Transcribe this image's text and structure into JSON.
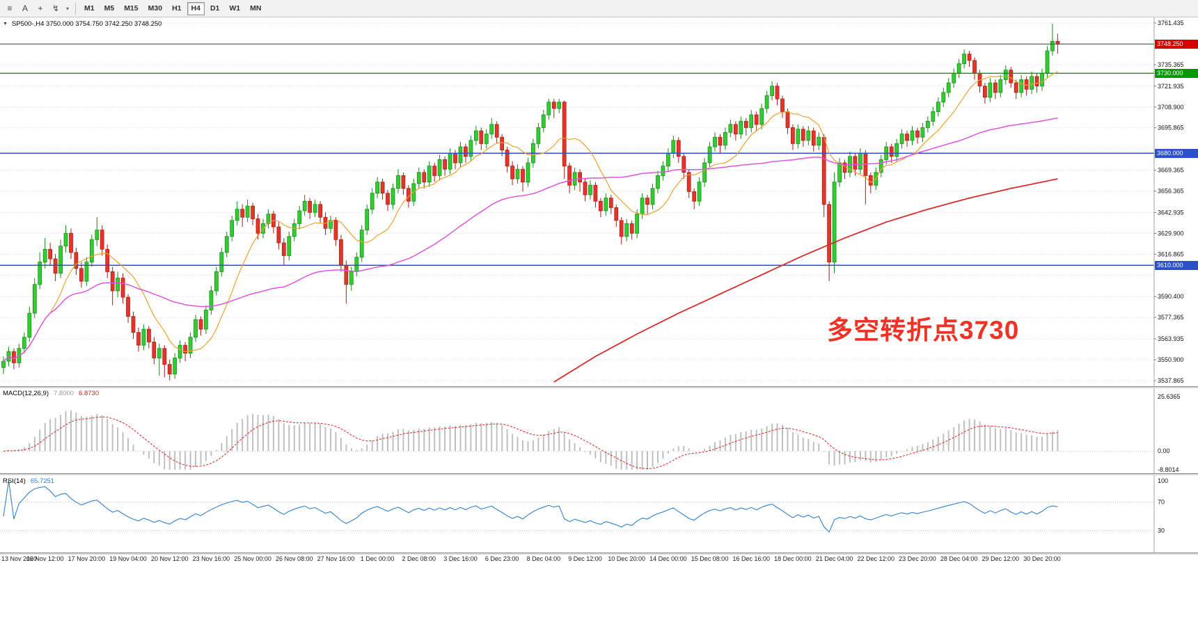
{
  "toolbar": {
    "left_icons": [
      {
        "name": "charts-grid-icon",
        "glyph": "≡"
      },
      {
        "name": "text-annotation-icon",
        "glyph": "A"
      },
      {
        "name": "crosshair-icon",
        "glyph": "+"
      },
      {
        "name": "line-studies-icon",
        "glyph": "↯"
      },
      {
        "name": "dropdown-caret-icon",
        "glyph": "▾"
      }
    ],
    "timeframes": [
      "M1",
      "M5",
      "M15",
      "M30",
      "H1",
      "H4",
      "D1",
      "W1",
      "MN"
    ],
    "active_timeframe": "H4"
  },
  "main_chart": {
    "collapse_glyph": "▼",
    "title": "SP500-,H4 3750.000 3754.750 3742.250 3748.250",
    "annotation": {
      "text": "多空转折点3730",
      "color": "#ee3224"
    }
  },
  "macd_panel": {
    "label": "MACD(12,26,9)",
    "value_main": "7.8000",
    "value_signal": "6.8730",
    "axis_levels": [
      {
        "v": 25.6365,
        "t": "25.6365"
      },
      {
        "v": 0,
        "t": "0.00"
      },
      {
        "v": -8.8014,
        "t": "-8.8014"
      }
    ]
  },
  "rsi_panel": {
    "label": "RSI(14)",
    "value": "65.7251",
    "axis_levels": [
      {
        "v": 100,
        "t": "100"
      },
      {
        "v": 70,
        "t": "70"
      },
      {
        "v": 30,
        "t": "30"
      }
    ],
    "levels": [
      70,
      30
    ]
  },
  "price_axis": {
    "ticks": [
      "3761.435",
      "3735.365",
      "3721.935",
      "3708.900",
      "3695.865",
      "3669.365",
      "3656.365",
      "3642.935",
      "3629.900",
      "3616.865",
      "3590.400",
      "3577.365",
      "3563.935",
      "3550.900",
      "3537.865"
    ],
    "grid_extra": [
      3748.4,
      3682.83,
      3603.865
    ],
    "badges": [
      {
        "price": 3748.25,
        "label": "3748.250",
        "color": "#d40000"
      },
      {
        "price": 3730.0,
        "label": "3730.000",
        "color": "#009a00"
      },
      {
        "price": 3680.0,
        "label": "3680.000",
        "color": "#2b50c8"
      },
      {
        "price": 3610.0,
        "label": "3610.000",
        "color": "#2b50c8"
      }
    ]
  },
  "time_axis": {
    "labels": [
      "13 Nov 2020",
      "16 Nov 12:00",
      "17 Nov 20:00",
      "19 Nov 04:00",
      "20 Nov 12:00",
      "23 Nov 16:00",
      "25 Nov 00:00",
      "26 Nov 08:00",
      "27 Nov 16:00",
      "1 Dec 00:00",
      "2 Dec 08:00",
      "3 Dec 16:00",
      "6 Dec 23:00",
      "8 Dec 04:00",
      "9 Dec 12:00",
      "10 Dec 20:00",
      "14 Dec 00:00",
      "15 Dec 08:00",
      "16 Dec 16:00",
      "18 Dec 00:00",
      "21 Dec 04:00",
      "22 Dec 12:00",
      "23 Dec 20:00",
      "28 Dec 04:00",
      "29 Dec 12:00",
      "30 Dec 20:00"
    ]
  },
  "chart_data": {
    "type": "candlestick",
    "symbol": "SP500-",
    "timeframe": "H4",
    "current_bar": {
      "open": 3750.0,
      "high": 3754.75,
      "low": 3742.25,
      "close": 3748.25
    },
    "y_range": [
      3537.865,
      3761.435
    ],
    "colors": {
      "up": "#33cc33",
      "up_stroke": "#128a12",
      "down": "#e5352b",
      "down_stroke": "#a81a10"
    },
    "candles": [
      [
        3546,
        3553,
        3542,
        3550
      ],
      [
        3550,
        3559,
        3547,
        3556
      ],
      [
        3556,
        3558,
        3545,
        3549
      ],
      [
        3549,
        3561,
        3546,
        3558
      ],
      [
        3558,
        3568,
        3555,
        3565
      ],
      [
        3565,
        3584,
        3562,
        3580
      ],
      [
        3580,
        3602,
        3577,
        3598
      ],
      [
        3598,
        3618,
        3595,
        3612
      ],
      [
        3612,
        3627,
        3608,
        3620
      ],
      [
        3620,
        3624,
        3610,
        3614
      ],
      [
        3614,
        3617,
        3600,
        3605
      ],
      [
        3605,
        3626,
        3602,
        3622
      ],
      [
        3622,
        3635,
        3618,
        3630
      ],
      [
        3630,
        3633,
        3614,
        3618
      ],
      [
        3618,
        3621,
        3604,
        3608
      ],
      [
        3608,
        3612,
        3596,
        3600
      ],
      [
        3600,
        3615,
        3597,
        3612
      ],
      [
        3612,
        3629,
        3609,
        3626
      ],
      [
        3626,
        3640,
        3622,
        3632
      ],
      [
        3632,
        3635,
        3616,
        3620
      ],
      [
        3620,
        3623,
        3602,
        3606
      ],
      [
        3606,
        3609,
        3585,
        3594
      ],
      [
        3594,
        3606,
        3590,
        3602
      ],
      [
        3602,
        3605,
        3586,
        3590
      ],
      [
        3590,
        3592,
        3574,
        3578
      ],
      [
        3578,
        3581,
        3564,
        3568
      ],
      [
        3568,
        3571,
        3556,
        3560
      ],
      [
        3560,
        3573,
        3557,
        3570
      ],
      [
        3570,
        3572,
        3558,
        3562
      ],
      [
        3562,
        3565,
        3548,
        3552
      ],
      [
        3552,
        3561,
        3541,
        3558
      ],
      [
        3558,
        3560,
        3540,
        3548
      ],
      [
        3548,
        3551,
        3538,
        3542
      ],
      [
        3542,
        3555,
        3539,
        3552
      ],
      [
        3552,
        3563,
        3549,
        3560
      ],
      [
        3560,
        3562,
        3550,
        3555
      ],
      [
        3555,
        3568,
        3552,
        3565
      ],
      [
        3565,
        3579,
        3562,
        3576
      ],
      [
        3576,
        3578,
        3566,
        3570
      ],
      [
        3570,
        3585,
        3567,
        3582
      ],
      [
        3582,
        3597,
        3579,
        3594
      ],
      [
        3594,
        3609,
        3591,
        3606
      ],
      [
        3606,
        3621,
        3603,
        3618
      ],
      [
        3618,
        3631,
        3615,
        3628
      ],
      [
        3628,
        3641,
        3625,
        3638
      ],
      [
        3638,
        3650,
        3635,
        3645
      ],
      [
        3645,
        3648,
        3634,
        3640
      ],
      [
        3640,
        3651,
        3637,
        3647
      ],
      [
        3647,
        3649,
        3635,
        3639
      ],
      [
        3639,
        3642,
        3626,
        3630
      ],
      [
        3630,
        3639,
        3627,
        3636
      ],
      [
        3636,
        3645,
        3633,
        3642
      ],
      [
        3642,
        3644,
        3630,
        3634
      ],
      [
        3634,
        3637,
        3620,
        3624
      ],
      [
        3624,
        3627,
        3610,
        3616
      ],
      [
        3616,
        3631,
        3613,
        3628
      ],
      [
        3628,
        3639,
        3625,
        3636
      ],
      [
        3636,
        3647,
        3633,
        3644
      ],
      [
        3644,
        3654,
        3641,
        3650
      ],
      [
        3650,
        3652,
        3639,
        3643
      ],
      [
        3643,
        3651,
        3640,
        3648
      ],
      [
        3648,
        3650,
        3636,
        3640
      ],
      [
        3640,
        3643,
        3629,
        3633
      ],
      [
        3633,
        3641,
        3630,
        3638
      ],
      [
        3638,
        3640,
        3622,
        3626
      ],
      [
        3626,
        3629,
        3606,
        3610
      ],
      [
        3610,
        3613,
        3586,
        3598
      ],
      [
        3598,
        3609,
        3594,
        3606
      ],
      [
        3606,
        3618,
        3603,
        3615
      ],
      [
        3615,
        3635,
        3612,
        3632
      ],
      [
        3632,
        3648,
        3629,
        3645
      ],
      [
        3645,
        3658,
        3642,
        3655
      ],
      [
        3655,
        3665,
        3652,
        3662
      ],
      [
        3662,
        3664,
        3651,
        3655
      ],
      [
        3655,
        3657,
        3644,
        3648
      ],
      [
        3648,
        3661,
        3645,
        3658
      ],
      [
        3658,
        3670,
        3655,
        3666
      ],
      [
        3666,
        3668,
        3654,
        3658
      ],
      [
        3658,
        3660,
        3646,
        3650
      ],
      [
        3650,
        3664,
        3647,
        3661
      ],
      [
        3661,
        3671,
        3658,
        3668
      ],
      [
        3668,
        3670,
        3658,
        3662
      ],
      [
        3662,
        3675,
        3659,
        3672
      ],
      [
        3672,
        3674,
        3662,
        3666
      ],
      [
        3666,
        3679,
        3663,
        3676
      ],
      [
        3676,
        3678,
        3666,
        3670
      ],
      [
        3670,
        3683,
        3667,
        3680
      ],
      [
        3680,
        3682,
        3670,
        3674
      ],
      [
        3674,
        3687,
        3671,
        3684
      ],
      [
        3684,
        3686,
        3674,
        3678
      ],
      [
        3678,
        3691,
        3675,
        3688
      ],
      [
        3688,
        3697,
        3685,
        3694
      ],
      [
        3694,
        3696,
        3682,
        3686
      ],
      [
        3686,
        3695,
        3683,
        3692
      ],
      [
        3692,
        3702,
        3689,
        3698
      ],
      [
        3698,
        3700,
        3686,
        3690
      ],
      [
        3690,
        3692,
        3678,
        3682
      ],
      [
        3682,
        3684,
        3668,
        3672
      ],
      [
        3672,
        3675,
        3660,
        3664
      ],
      [
        3664,
        3673,
        3661,
        3670
      ],
      [
        3670,
        3672,
        3656,
        3662
      ],
      [
        3662,
        3677,
        3659,
        3674
      ],
      [
        3674,
        3689,
        3671,
        3686
      ],
      [
        3686,
        3699,
        3683,
        3696
      ],
      [
        3696,
        3707,
        3693,
        3704
      ],
      [
        3704,
        3714,
        3701,
        3712
      ],
      [
        3712,
        3714,
        3702,
        3708
      ],
      [
        3708,
        3714,
        3705,
        3712
      ],
      [
        3712,
        3713,
        3664,
        3672
      ],
      [
        3672,
        3674,
        3655,
        3660
      ],
      [
        3660,
        3671,
        3657,
        3668
      ],
      [
        3668,
        3670,
        3656,
        3662
      ],
      [
        3662,
        3664,
        3650,
        3654
      ],
      [
        3654,
        3663,
        3651,
        3660
      ],
      [
        3660,
        3662,
        3646,
        3650
      ],
      [
        3650,
        3652,
        3640,
        3644
      ],
      [
        3644,
        3655,
        3641,
        3652
      ],
      [
        3652,
        3654,
        3642,
        3646
      ],
      [
        3646,
        3648,
        3634,
        3638
      ],
      [
        3638,
        3640,
        3623,
        3628
      ],
      [
        3628,
        3639,
        3625,
        3636
      ],
      [
        3636,
        3638,
        3626,
        3630
      ],
      [
        3630,
        3645,
        3627,
        3642
      ],
      [
        3642,
        3655,
        3639,
        3652
      ],
      [
        3652,
        3654,
        3642,
        3648
      ],
      [
        3648,
        3661,
        3645,
        3658
      ],
      [
        3658,
        3669,
        3655,
        3666
      ],
      [
        3666,
        3675,
        3663,
        3672
      ],
      [
        3672,
        3683,
        3669,
        3680
      ],
      [
        3680,
        3691,
        3677,
        3688
      ],
      [
        3688,
        3690,
        3674,
        3678
      ],
      [
        3678,
        3680,
        3664,
        3668
      ],
      [
        3668,
        3670,
        3652,
        3656
      ],
      [
        3656,
        3658,
        3645,
        3650
      ],
      [
        3650,
        3665,
        3647,
        3662
      ],
      [
        3662,
        3677,
        3659,
        3674
      ],
      [
        3674,
        3687,
        3671,
        3684
      ],
      [
        3684,
        3693,
        3681,
        3690
      ],
      [
        3690,
        3692,
        3680,
        3685
      ],
      [
        3685,
        3696,
        3682,
        3693
      ],
      [
        3693,
        3701,
        3690,
        3698
      ],
      [
        3698,
        3700,
        3688,
        3692
      ],
      [
        3692,
        3703,
        3689,
        3700
      ],
      [
        3700,
        3702,
        3691,
        3696
      ],
      [
        3696,
        3707,
        3693,
        3704
      ],
      [
        3704,
        3706,
        3694,
        3698
      ],
      [
        3698,
        3711,
        3695,
        3708
      ],
      [
        3708,
        3719,
        3705,
        3716
      ],
      [
        3716,
        3725,
        3713,
        3722
      ],
      [
        3722,
        3724,
        3710,
        3714
      ],
      [
        3714,
        3716,
        3702,
        3706
      ],
      [
        3706,
        3708,
        3692,
        3696
      ],
      [
        3696,
        3698,
        3682,
        3686
      ],
      [
        3686,
        3698,
        3683,
        3695
      ],
      [
        3695,
        3697,
        3684,
        3688
      ],
      [
        3688,
        3697,
        3685,
        3694
      ],
      [
        3694,
        3696,
        3681,
        3685
      ],
      [
        3685,
        3693,
        3682,
        3690
      ],
      [
        3690,
        3692,
        3640,
        3648
      ],
      [
        3648,
        3650,
        3600,
        3612
      ],
      [
        3612,
        3668,
        3605,
        3662
      ],
      [
        3662,
        3677,
        3659,
        3674
      ],
      [
        3674,
        3676,
        3664,
        3668
      ],
      [
        3668,
        3681,
        3665,
        3678
      ],
      [
        3678,
        3680,
        3666,
        3670
      ],
      [
        3670,
        3683,
        3667,
        3680
      ],
      [
        3680,
        3682,
        3648,
        3666
      ],
      [
        3666,
        3668,
        3655,
        3660
      ],
      [
        3660,
        3671,
        3657,
        3668
      ],
      [
        3668,
        3679,
        3665,
        3676
      ],
      [
        3676,
        3687,
        3673,
        3684
      ],
      [
        3684,
        3686,
        3674,
        3678
      ],
      [
        3678,
        3689,
        3675,
        3686
      ],
      [
        3686,
        3695,
        3683,
        3692
      ],
      [
        3692,
        3694,
        3684,
        3688
      ],
      [
        3688,
        3697,
        3685,
        3694
      ],
      [
        3694,
        3696,
        3686,
        3690
      ],
      [
        3690,
        3699,
        3687,
        3696
      ],
      [
        3696,
        3703,
        3693,
        3700
      ],
      [
        3700,
        3709,
        3697,
        3706
      ],
      [
        3706,
        3715,
        3703,
        3712
      ],
      [
        3712,
        3721,
        3709,
        3718
      ],
      [
        3718,
        3727,
        3715,
        3724
      ],
      [
        3724,
        3733,
        3721,
        3730
      ],
      [
        3730,
        3739,
        3727,
        3736
      ],
      [
        3736,
        3745,
        3733,
        3742
      ],
      [
        3742,
        3744,
        3734,
        3738
      ],
      [
        3738,
        3740,
        3726,
        3730
      ],
      [
        3730,
        3732,
        3718,
        3722
      ],
      [
        3722,
        3724,
        3711,
        3715
      ],
      [
        3715,
        3727,
        3712,
        3724
      ],
      [
        3724,
        3726,
        3714,
        3718
      ],
      [
        3718,
        3729,
        3715,
        3726
      ],
      [
        3726,
        3735,
        3723,
        3732
      ],
      [
        3732,
        3734,
        3721,
        3724
      ],
      [
        3724,
        3726,
        3714,
        3718
      ],
      [
        3718,
        3729,
        3715,
        3726
      ],
      [
        3726,
        3728,
        3716,
        3720
      ],
      [
        3720,
        3731,
        3717,
        3728
      ],
      [
        3728,
        3730,
        3718,
        3722
      ],
      [
        3722,
        3733,
        3719,
        3730
      ],
      [
        3730,
        3747,
        3727,
        3744
      ],
      [
        3744,
        3761,
        3741,
        3750
      ],
      [
        3750,
        3754.75,
        3742.25,
        3748.25
      ]
    ],
    "overlays": {
      "ma_fast": {
        "name": "fast-ma",
        "color": "#f0a030",
        "method": "sma",
        "period": 10
      },
      "ma_medium": {
        "name": "medium-ma",
        "color": "#dd55dd",
        "method": "sma",
        "period": 55
      },
      "ma_slow": {
        "name": "slow-ma",
        "color": "#d92b2b",
        "points": [
          [
            106,
            3537
          ],
          [
            114,
            3553
          ],
          [
            122,
            3567
          ],
          [
            130,
            3580
          ],
          [
            138,
            3592
          ],
          [
            146,
            3604
          ],
          [
            154,
            3616
          ],
          [
            162,
            3627
          ],
          [
            170,
            3637
          ],
          [
            178,
            3645
          ],
          [
            186,
            3652
          ],
          [
            194,
            3658
          ],
          [
            203,
            3664
          ]
        ]
      }
    },
    "hlines": [
      {
        "name": "current-price-line",
        "price": 3748.25,
        "color": "#3d3d3d",
        "width": 1
      },
      {
        "name": "hline-3730",
        "price": 3730.0,
        "color": "#009a00",
        "width": 1.3
      },
      {
        "name": "hline-3680",
        "price": 3680.0,
        "color": "#2b50c8",
        "width": 1.5
      },
      {
        "name": "hline-3610",
        "price": 3610.0,
        "color": "#2b50c8",
        "width": 1.5
      }
    ],
    "indicators": {
      "macd": {
        "fast": 12,
        "slow": 26,
        "signal": 9,
        "value_main": 7.8,
        "value_signal": 6.873,
        "range": [
          -8.8014,
          25.6365
        ]
      },
      "rsi": {
        "period": 14,
        "value": 65.7251,
        "levels": [
          70,
          30
        ]
      }
    }
  }
}
